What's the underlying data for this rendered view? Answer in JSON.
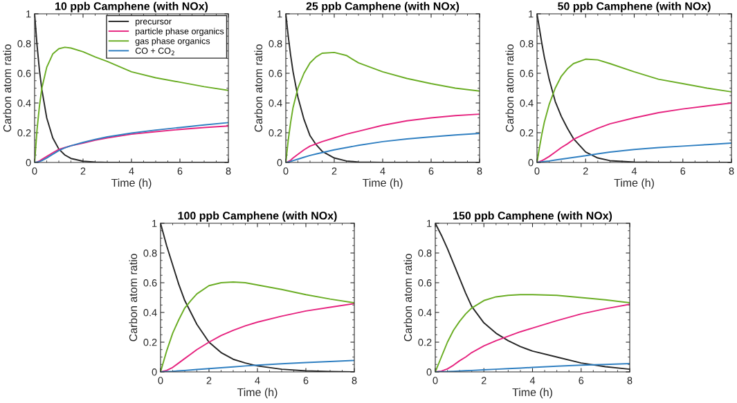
{
  "chart_data": [
    {
      "type": "line",
      "title": "10 ppb Camphene (with NOx)",
      "xlabel": "Time (h)",
      "ylabel": "Carbon atom ratio",
      "xlim": [
        0,
        8
      ],
      "ylim": [
        0,
        1
      ],
      "xticks": [
        0,
        2,
        4,
        6,
        8
      ],
      "yticks": [
        0,
        0.2,
        0.4,
        0.6,
        0.8,
        1
      ],
      "grid": false,
      "legend": "top right",
      "marker": "none",
      "line_style": "solid",
      "x": [
        0,
        0.1,
        0.2,
        0.3,
        0.5,
        0.75,
        1,
        1.25,
        1.5,
        2,
        2.5,
        3,
        4,
        5,
        6,
        7,
        8
      ],
      "series": [
        {
          "name": "precursor",
          "color": "#262626",
          "values": [
            1,
            0.79,
            0.62,
            0.49,
            0.3,
            0.165,
            0.09,
            0.05,
            0.027,
            0.008,
            0.002,
            0,
            0,
            0,
            0,
            0,
            0
          ]
        },
        {
          "name": "particle phase organics",
          "color": "#e6237f",
          "values": [
            0,
            0.003,
            0.01,
            0.02,
            0.04,
            0.065,
            0.088,
            0.1,
            0.112,
            0.13,
            0.15,
            0.165,
            0.19,
            0.207,
            0.222,
            0.235,
            0.245
          ]
        },
        {
          "name": "gas phase organics",
          "color": "#6aad24",
          "values": [
            0,
            0.22,
            0.38,
            0.5,
            0.64,
            0.73,
            0.765,
            0.775,
            0.77,
            0.745,
            0.71,
            0.68,
            0.61,
            0.57,
            0.54,
            0.51,
            0.485
          ]
        },
        {
          "name": "CO + CO$_{2}$",
          "color": "#2f7fc1",
          "values": [
            0,
            0.002,
            0.006,
            0.012,
            0.03,
            0.055,
            0.08,
            0.098,
            0.112,
            0.135,
            0.155,
            0.172,
            0.198,
            0.218,
            0.235,
            0.252,
            0.268
          ]
        }
      ]
    },
    {
      "type": "line",
      "title": "25 ppb Camphene (with NOx)",
      "xlabel": "Time (h)",
      "ylabel": "Carbon atom ratio",
      "xlim": [
        0,
        8
      ],
      "ylim": [
        0,
        1
      ],
      "xticks": [
        0,
        2,
        4,
        6,
        8
      ],
      "yticks": [
        0,
        0.2,
        0.4,
        0.6,
        0.8,
        1
      ],
      "grid": false,
      "marker": "none",
      "line_style": "solid",
      "x": [
        0,
        0.1,
        0.2,
        0.3,
        0.5,
        0.75,
        1,
        1.25,
        1.5,
        2,
        2.5,
        3,
        4,
        5,
        6,
        7,
        8
      ],
      "series": [
        {
          "color": "#262626",
          "values": [
            1,
            0.85,
            0.72,
            0.61,
            0.44,
            0.29,
            0.18,
            0.12,
            0.075,
            0.03,
            0.01,
            0.003,
            0,
            0,
            0,
            0,
            0
          ]
        },
        {
          "color": "#e6237f",
          "values": [
            0,
            0.005,
            0.015,
            0.03,
            0.055,
            0.085,
            0.11,
            0.125,
            0.14,
            0.165,
            0.19,
            0.21,
            0.25,
            0.28,
            0.3,
            0.315,
            0.325
          ]
        },
        {
          "color": "#6aad24",
          "values": [
            0,
            0.15,
            0.27,
            0.37,
            0.5,
            0.6,
            0.67,
            0.71,
            0.735,
            0.74,
            0.72,
            0.67,
            0.61,
            0.565,
            0.53,
            0.5,
            0.48
          ]
        },
        {
          "color": "#2f7fc1",
          "values": [
            0,
            0.003,
            0.007,
            0.012,
            0.022,
            0.035,
            0.047,
            0.057,
            0.066,
            0.085,
            0.1,
            0.115,
            0.14,
            0.158,
            0.172,
            0.185,
            0.195
          ]
        }
      ]
    },
    {
      "type": "line",
      "title": "50 ppb Camphene (with NOx)",
      "xlabel": "Time (h)",
      "ylabel": "Carbon atom ratio",
      "xlim": [
        0,
        8
      ],
      "ylim": [
        0,
        1
      ],
      "xticks": [
        0,
        2,
        4,
        6,
        8
      ],
      "yticks": [
        0,
        0.2,
        0.4,
        0.6,
        0.8,
        1
      ],
      "grid": false,
      "marker": "none",
      "line_style": "solid",
      "x": [
        0,
        0.1,
        0.2,
        0.3,
        0.5,
        0.75,
        1,
        1.25,
        1.5,
        2,
        2.5,
        3,
        4,
        5,
        6,
        7,
        8
      ],
      "series": [
        {
          "color": "#262626",
          "values": [
            1,
            0.9,
            0.8,
            0.71,
            0.56,
            0.41,
            0.31,
            0.23,
            0.16,
            0.07,
            0.03,
            0.012,
            0.002,
            0,
            0,
            0,
            0
          ]
        },
        {
          "color": "#e6237f",
          "values": [
            0,
            0.005,
            0.012,
            0.02,
            0.04,
            0.07,
            0.1,
            0.125,
            0.155,
            0.195,
            0.23,
            0.26,
            0.3,
            0.335,
            0.36,
            0.38,
            0.4
          ]
        },
        {
          "color": "#6aad24",
          "values": [
            0,
            0.1,
            0.19,
            0.27,
            0.39,
            0.5,
            0.58,
            0.63,
            0.665,
            0.695,
            0.69,
            0.665,
            0.61,
            0.56,
            0.53,
            0.5,
            0.475
          ]
        },
        {
          "color": "#2f7fc1",
          "values": [
            0,
            0.002,
            0.004,
            0.006,
            0.01,
            0.016,
            0.022,
            0.028,
            0.034,
            0.045,
            0.058,
            0.07,
            0.087,
            0.1,
            0.11,
            0.12,
            0.13
          ]
        }
      ]
    },
    {
      "type": "line",
      "title": "100 ppb Camphene (with NOx)",
      "xlabel": "Time (h)",
      "ylabel": "Carbon atom ratio",
      "xlim": [
        0,
        8
      ],
      "ylim": [
        0,
        1
      ],
      "xticks": [
        0,
        2,
        4,
        6,
        8
      ],
      "yticks": [
        0,
        0.2,
        0.4,
        0.6,
        0.8,
        1
      ],
      "grid": false,
      "marker": "none",
      "line_style": "solid",
      "x": [
        0,
        0.25,
        0.5,
        0.75,
        1,
        1.25,
        1.5,
        2,
        2.5,
        3,
        3.5,
        4,
        5,
        6,
        7,
        8
      ],
      "series": [
        {
          "color": "#262626",
          "values": [
            1,
            0.85,
            0.72,
            0.59,
            0.48,
            0.4,
            0.32,
            0.2,
            0.13,
            0.085,
            0.06,
            0.04,
            0.018,
            0.007,
            0.002,
            0
          ]
        },
        {
          "color": "#e6237f",
          "values": [
            0,
            0.01,
            0.03,
            0.06,
            0.09,
            0.12,
            0.15,
            0.2,
            0.245,
            0.28,
            0.31,
            0.335,
            0.375,
            0.41,
            0.435,
            0.46
          ]
        },
        {
          "color": "#6aad24",
          "values": [
            0,
            0.14,
            0.26,
            0.35,
            0.43,
            0.48,
            0.525,
            0.58,
            0.6,
            0.605,
            0.6,
            0.585,
            0.555,
            0.52,
            0.49,
            0.465
          ]
        },
        {
          "color": "#2f7fc1",
          "values": [
            0,
            0.002,
            0.004,
            0.007,
            0.01,
            0.013,
            0.016,
            0.022,
            0.028,
            0.034,
            0.04,
            0.045,
            0.055,
            0.063,
            0.07,
            0.077
          ]
        }
      ]
    },
    {
      "type": "line",
      "title": "150 ppb Camphene (with NOx)",
      "xlabel": "Time (h)",
      "ylabel": "Carbon atom ratio",
      "xlim": [
        0,
        8
      ],
      "ylim": [
        0,
        1
      ],
      "xticks": [
        0,
        2,
        4,
        6,
        8
      ],
      "yticks": [
        0,
        0.2,
        0.4,
        0.6,
        0.8,
        1
      ],
      "grid": false,
      "marker": "none",
      "line_style": "solid",
      "x": [
        0,
        0.25,
        0.5,
        0.75,
        1,
        1.25,
        1.5,
        2,
        2.5,
        3,
        3.5,
        4,
        5,
        6,
        7,
        8
      ],
      "series": [
        {
          "color": "#262626",
          "values": [
            1,
            0.92,
            0.83,
            0.73,
            0.63,
            0.53,
            0.44,
            0.33,
            0.26,
            0.21,
            0.17,
            0.14,
            0.1,
            0.06,
            0.035,
            0.018
          ]
        },
        {
          "color": "#e6237f",
          "values": [
            0,
            0.005,
            0.02,
            0.045,
            0.075,
            0.1,
            0.13,
            0.175,
            0.21,
            0.24,
            0.27,
            0.295,
            0.345,
            0.39,
            0.425,
            0.455
          ]
        },
        {
          "color": "#6aad24",
          "values": [
            0,
            0.1,
            0.2,
            0.28,
            0.34,
            0.39,
            0.43,
            0.48,
            0.505,
            0.515,
            0.52,
            0.52,
            0.515,
            0.5,
            0.485,
            0.465
          ]
        },
        {
          "color": "#2f7fc1",
          "values": [
            0,
            0.001,
            0.002,
            0.004,
            0.006,
            0.008,
            0.01,
            0.014,
            0.018,
            0.022,
            0.026,
            0.03,
            0.038,
            0.045,
            0.05,
            0.056
          ]
        }
      ]
    }
  ]
}
